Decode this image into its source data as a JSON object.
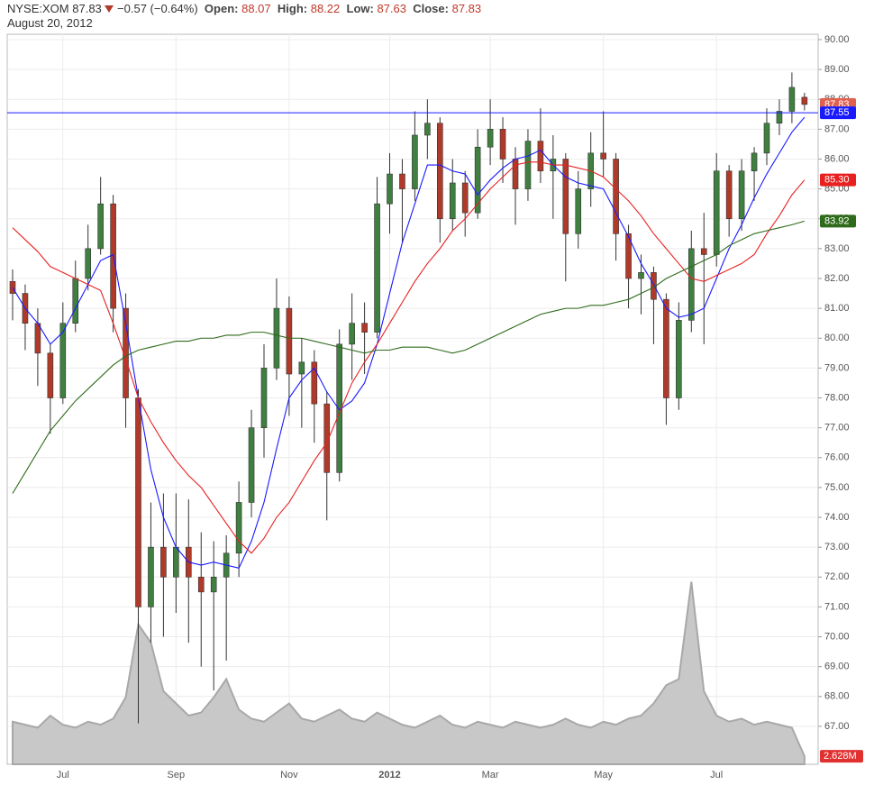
{
  "header": {
    "symbol": "NYSE:XOM",
    "price": "87.83",
    "change": "−0.57 (−0.64%)",
    "open_label": "Open:",
    "open": "88.07",
    "high_label": "High:",
    "high": "88.22",
    "low_label": "Low:",
    "low": "87.63",
    "close_label": "Close:",
    "close": "87.83",
    "date": "August 20, 2012"
  },
  "chart_data": {
    "type": "candlestick",
    "categories": [
      null,
      null,
      null,
      null,
      "Jul",
      null,
      null,
      null,
      null,
      null,
      null,
      null,
      null,
      "Sep",
      null,
      null,
      null,
      null,
      null,
      null,
      null,
      null,
      "Nov",
      null,
      null,
      null,
      null,
      null,
      null,
      null,
      "2012",
      null,
      null,
      null,
      null,
      null,
      null,
      null,
      "Mar",
      null,
      null,
      null,
      null,
      null,
      null,
      null,
      null,
      "May",
      null,
      null,
      null,
      null,
      null,
      null,
      null,
      null,
      "Jul",
      null,
      null,
      null,
      null,
      null,
      null,
      null
    ],
    "open": [
      81.9,
      81.5,
      80.5,
      79.5,
      78.0,
      80.5,
      82.0,
      83.0,
      84.5,
      81.0,
      78.0,
      71.0,
      73.0,
      72.0,
      73.0,
      72.0,
      71.5,
      72.0,
      72.8,
      74.5,
      77.0,
      79.0,
      81.0,
      78.8,
      79.2,
      77.8,
      75.5,
      79.8,
      80.5,
      80.2,
      84.5,
      85.5,
      85.0,
      86.8,
      87.2,
      84.0,
      85.2,
      84.2,
      86.4,
      87.0,
      86.0,
      85.0,
      86.6,
      85.6,
      86.0,
      83.5,
      85.0,
      86.2,
      86.0,
      83.5,
      82.0,
      82.2,
      81.3,
      78.0,
      80.6,
      83.0,
      82.8,
      85.6,
      84.0,
      85.6,
      86.2,
      87.2,
      87.6,
      88.07
    ],
    "high": [
      82.3,
      81.8,
      81.0,
      79.8,
      81.2,
      82.6,
      83.8,
      85.4,
      84.8,
      81.5,
      78.3,
      74.5,
      74.8,
      74.8,
      74.6,
      73.5,
      73.2,
      73.4,
      75.2,
      77.6,
      79.8,
      82.0,
      81.4,
      80.0,
      79.6,
      78.2,
      80.3,
      81.5,
      81.2,
      85.4,
      86.2,
      86.0,
      87.6,
      88.0,
      87.4,
      86.0,
      85.6,
      87.0,
      88.0,
      87.4,
      86.4,
      87.0,
      87.7,
      86.8,
      86.2,
      85.6,
      86.9,
      87.6,
      86.2,
      83.8,
      82.8,
      82.4,
      81.5,
      81.2,
      83.6,
      84.2,
      86.2,
      85.8,
      86.0,
      86.4,
      87.7,
      88.0,
      88.9,
      88.22
    ],
    "low": [
      80.6,
      79.6,
      78.4,
      76.8,
      77.8,
      80.2,
      81.6,
      82.8,
      80.2,
      77.0,
      67.1,
      69.8,
      70.0,
      70.8,
      69.8,
      69.0,
      68.2,
      69.2,
      72.0,
      74.0,
      76.0,
      78.6,
      77.4,
      77.0,
      76.5,
      73.9,
      75.2,
      78.6,
      78.8,
      80.0,
      83.5,
      83.2,
      84.6,
      86.0,
      83.2,
      83.6,
      83.4,
      84.0,
      85.8,
      85.2,
      83.8,
      84.6,
      85.2,
      84.0,
      81.9,
      83.0,
      84.4,
      85.4,
      82.6,
      81.0,
      80.8,
      79.8,
      77.1,
      77.6,
      80.2,
      79.8,
      82.4,
      83.4,
      83.6,
      84.6,
      85.8,
      86.8,
      87.2,
      87.63
    ],
    "close": [
      81.5,
      80.5,
      79.5,
      78.0,
      80.5,
      82.0,
      83.0,
      84.5,
      81.0,
      78.0,
      71.0,
      73.0,
      72.0,
      73.0,
      72.0,
      71.5,
      72.0,
      72.8,
      74.5,
      77.0,
      79.0,
      81.0,
      78.8,
      79.2,
      77.8,
      75.5,
      79.8,
      80.5,
      80.2,
      84.5,
      85.5,
      85.0,
      86.8,
      87.2,
      84.0,
      85.2,
      84.2,
      86.4,
      87.0,
      86.0,
      85.0,
      86.6,
      85.6,
      86.0,
      83.5,
      85.0,
      86.2,
      86.0,
      83.5,
      82.0,
      82.2,
      81.3,
      78.0,
      80.6,
      83.0,
      82.8,
      85.6,
      84.0,
      85.6,
      86.2,
      87.2,
      87.6,
      88.4,
      87.83
    ],
    "up_color": "#3f7f3f",
    "down_color": "#b03a2a",
    "series": [
      {
        "color": "#1a1aff",
        "values": [
          81.7,
          81.0,
          80.5,
          79.8,
          80.2,
          81.0,
          81.8,
          82.6,
          82.8,
          80.5,
          78.0,
          75.6,
          74.0,
          73.0,
          72.5,
          72.4,
          72.5,
          72.4,
          72.3,
          73.2,
          74.5,
          76.3,
          78.0,
          78.6,
          79.0,
          78.2,
          77.6,
          77.9,
          78.5,
          79.8,
          81.5,
          83.2,
          84.5,
          85.8,
          85.8,
          85.6,
          85.5,
          84.8,
          85.3,
          85.7,
          86.0,
          86.1,
          86.3,
          85.8,
          85.4,
          85.2,
          85.1,
          85.0,
          84.2,
          83.4,
          82.5,
          81.8,
          81.0,
          80.7,
          80.8,
          81.0,
          82.0,
          83.0,
          83.8,
          84.7,
          85.5,
          86.2,
          86.9,
          87.4
        ]
      },
      {
        "color": "#e82020",
        "values": [
          83.7,
          83.3,
          82.9,
          82.4,
          82.2,
          82.0,
          81.8,
          81.6,
          80.5,
          79.3,
          78.0,
          77.2,
          76.5,
          75.9,
          75.4,
          75.0,
          74.4,
          73.8,
          73.2,
          72.8,
          73.3,
          74.0,
          74.5,
          75.2,
          75.9,
          76.5,
          77.5,
          78.5,
          79.2,
          79.8,
          80.5,
          81.2,
          81.9,
          82.5,
          83.0,
          83.6,
          84.0,
          84.5,
          85.0,
          85.4,
          85.8,
          85.9,
          85.9,
          85.8,
          85.8,
          85.7,
          85.6,
          85.4,
          85.0,
          84.6,
          84.1,
          83.5,
          83.0,
          82.5,
          82.0,
          81.9,
          82.1,
          82.3,
          82.5,
          82.8,
          83.5,
          84.1,
          84.8,
          85.3
        ]
      },
      {
        "color": "#2e6b1a",
        "values": [
          74.8,
          75.5,
          76.2,
          76.9,
          77.4,
          77.9,
          78.3,
          78.7,
          79.1,
          79.4,
          79.6,
          79.7,
          79.8,
          79.9,
          79.9,
          80.0,
          80.0,
          80.1,
          80.1,
          80.2,
          80.2,
          80.1,
          80.0,
          80.0,
          79.9,
          79.8,
          79.7,
          79.6,
          79.5,
          79.6,
          79.6,
          79.7,
          79.7,
          79.7,
          79.6,
          79.5,
          79.6,
          79.8,
          80.0,
          80.2,
          80.4,
          80.6,
          80.8,
          80.9,
          81.0,
          81.0,
          81.1,
          81.1,
          81.2,
          81.3,
          81.5,
          81.7,
          82.0,
          82.2,
          82.4,
          82.6,
          82.8,
          83.1,
          83.3,
          83.5,
          83.6,
          83.7,
          83.8,
          83.92
        ]
      }
    ],
    "hline": 87.55,
    "markers": [
      {
        "value": 87.83,
        "label": "87.83",
        "color": "#e06050"
      },
      {
        "value": 87.55,
        "label": "87.55",
        "color": "#1a1aff"
      },
      {
        "value": 85.3,
        "label": "85.30",
        "color": "#e82020"
      },
      {
        "value": 83.92,
        "label": "83.92",
        "color": "#2e6b1a"
      }
    ],
    "volume": {
      "color": "#c8c8c8",
      "line_color": "#a8a8a8",
      "values": [
        14,
        13,
        12,
        16,
        13,
        12,
        14,
        13,
        15,
        22,
        46,
        40,
        24,
        20,
        16,
        17,
        22,
        28,
        18,
        15,
        14,
        17,
        20,
        15,
        14,
        16,
        18,
        15,
        14,
        17,
        15,
        13,
        12,
        14,
        16,
        13,
        12,
        14,
        13,
        12,
        14,
        13,
        12,
        13,
        15,
        13,
        12,
        14,
        13,
        15,
        16,
        20,
        26,
        28,
        60,
        24,
        16,
        14,
        15,
        13,
        14,
        13,
        12,
        2.628
      ],
      "value_label": "2.628M",
      "label_color": "#e03030"
    },
    "ylim": [
      65.73,
      90.18
    ],
    "y2lim": [
      0,
      240
    ],
    "yticks": [
      {
        "value": 67,
        "label": "67.00"
      },
      {
        "value": 68,
        "label": "68.00"
      },
      {
        "value": 69,
        "label": "69.00"
      },
      {
        "value": 70,
        "label": "70.00"
      },
      {
        "value": 71,
        "label": "71.00"
      },
      {
        "value": 72,
        "label": "72.00"
      },
      {
        "value": 73,
        "label": "73.00"
      },
      {
        "value": 74,
        "label": "74.00"
      },
      {
        "value": 75,
        "label": "75.00"
      },
      {
        "value": 76,
        "label": "76.00"
      },
      {
        "value": 77,
        "label": "77.00"
      },
      {
        "value": 78,
        "label": "78.00"
      },
      {
        "value": 79,
        "label": "79.00"
      },
      {
        "value": 80,
        "label": "80.00"
      },
      {
        "value": 81,
        "label": "81.00"
      },
      {
        "value": 82,
        "label": "82.00"
      },
      {
        "value": 83,
        "label": "83.00"
      },
      {
        "value": 84,
        "label": "84.00"
      },
      {
        "value": 85,
        "label": "85.00"
      },
      {
        "value": 86,
        "label": "86.00"
      },
      {
        "value": 87,
        "label": "87.00"
      },
      {
        "value": 88,
        "label": "88.00"
      },
      {
        "value": 89,
        "label": "89.00"
      },
      {
        "value": 90,
        "label": "90.00"
      }
    ],
    "grid": true
  }
}
